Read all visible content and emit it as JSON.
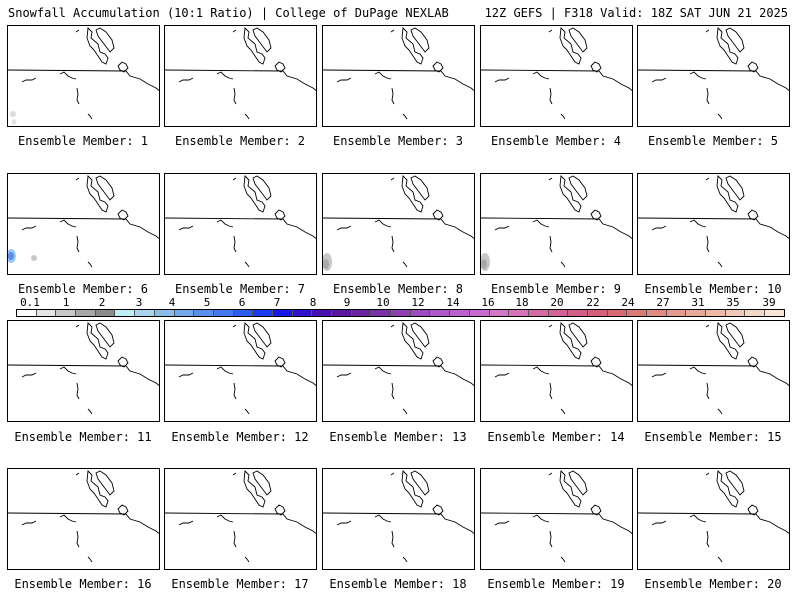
{
  "header": {
    "left": "Snowfall Accumulation (10:1 Ratio) | College of DuPage NEXLAB",
    "right": "12Z GEFS | F318 Valid: 18Z SAT JUN 21 2025"
  },
  "members": [
    {
      "label": "Ensemble Member: 1",
      "snow": "faint"
    },
    {
      "label": "Ensemble Member: 2",
      "snow": "none"
    },
    {
      "label": "Ensemble Member: 3",
      "snow": "none"
    },
    {
      "label": "Ensemble Member: 4",
      "snow": "none"
    },
    {
      "label": "Ensemble Member: 5",
      "snow": "none"
    },
    {
      "label": "Ensemble Member: 6",
      "snow": "blue"
    },
    {
      "label": "Ensemble Member: 7",
      "snow": "none"
    },
    {
      "label": "Ensemble Member: 8",
      "snow": "gray"
    },
    {
      "label": "Ensemble Member: 9",
      "snow": "gray"
    },
    {
      "label": "Ensemble Member: 10",
      "snow": "none"
    },
    {
      "label": "Ensemble Member: 11",
      "snow": "none"
    },
    {
      "label": "Ensemble Member: 12",
      "snow": "none"
    },
    {
      "label": "Ensemble Member: 13",
      "snow": "none"
    },
    {
      "label": "Ensemble Member: 14",
      "snow": "none"
    },
    {
      "label": "Ensemble Member: 15",
      "snow": "none"
    },
    {
      "label": "Ensemble Member: 16",
      "snow": "none"
    },
    {
      "label": "Ensemble Member: 17",
      "snow": "none"
    },
    {
      "label": "Ensemble Member: 18",
      "snow": "none"
    },
    {
      "label": "Ensemble Member: 19",
      "snow": "none"
    },
    {
      "label": "Ensemble Member: 20",
      "snow": "none"
    }
  ],
  "colorbar": {
    "ticks": [
      "0.1",
      "1",
      "2",
      "3",
      "4",
      "5",
      "6",
      "7",
      "8",
      "9",
      "10",
      "12",
      "14",
      "16",
      "18",
      "20",
      "22",
      "24",
      "27",
      "31",
      "35",
      "39"
    ],
    "colors": [
      "#ffffff",
      "#e6e6e6",
      "#c8c8c8",
      "#a8a8a8",
      "#8c8c8c",
      "#bfeff5",
      "#a8d4ec",
      "#8cbde8",
      "#74a8ea",
      "#5a90ec",
      "#4478ee",
      "#2c5cf0",
      "#1c3cf2",
      "#1818e8",
      "#3212cc",
      "#4810b0",
      "#5a189e",
      "#6a249e",
      "#7a32a8",
      "#8c40b4",
      "#9c4cc0",
      "#ae58ca",
      "#bc62d0",
      "#c86cd0",
      "#d476c8",
      "#d672b8",
      "#d66aa6",
      "#d46496",
      "#d26088",
      "#d4607c",
      "#d86a74",
      "#dc7a78",
      "#e08a80",
      "#e49a8c",
      "#e8aa98",
      "#ecbaa6",
      "#f0cab6",
      "#f4d8c6",
      "#f8e6d8"
    ]
  }
}
